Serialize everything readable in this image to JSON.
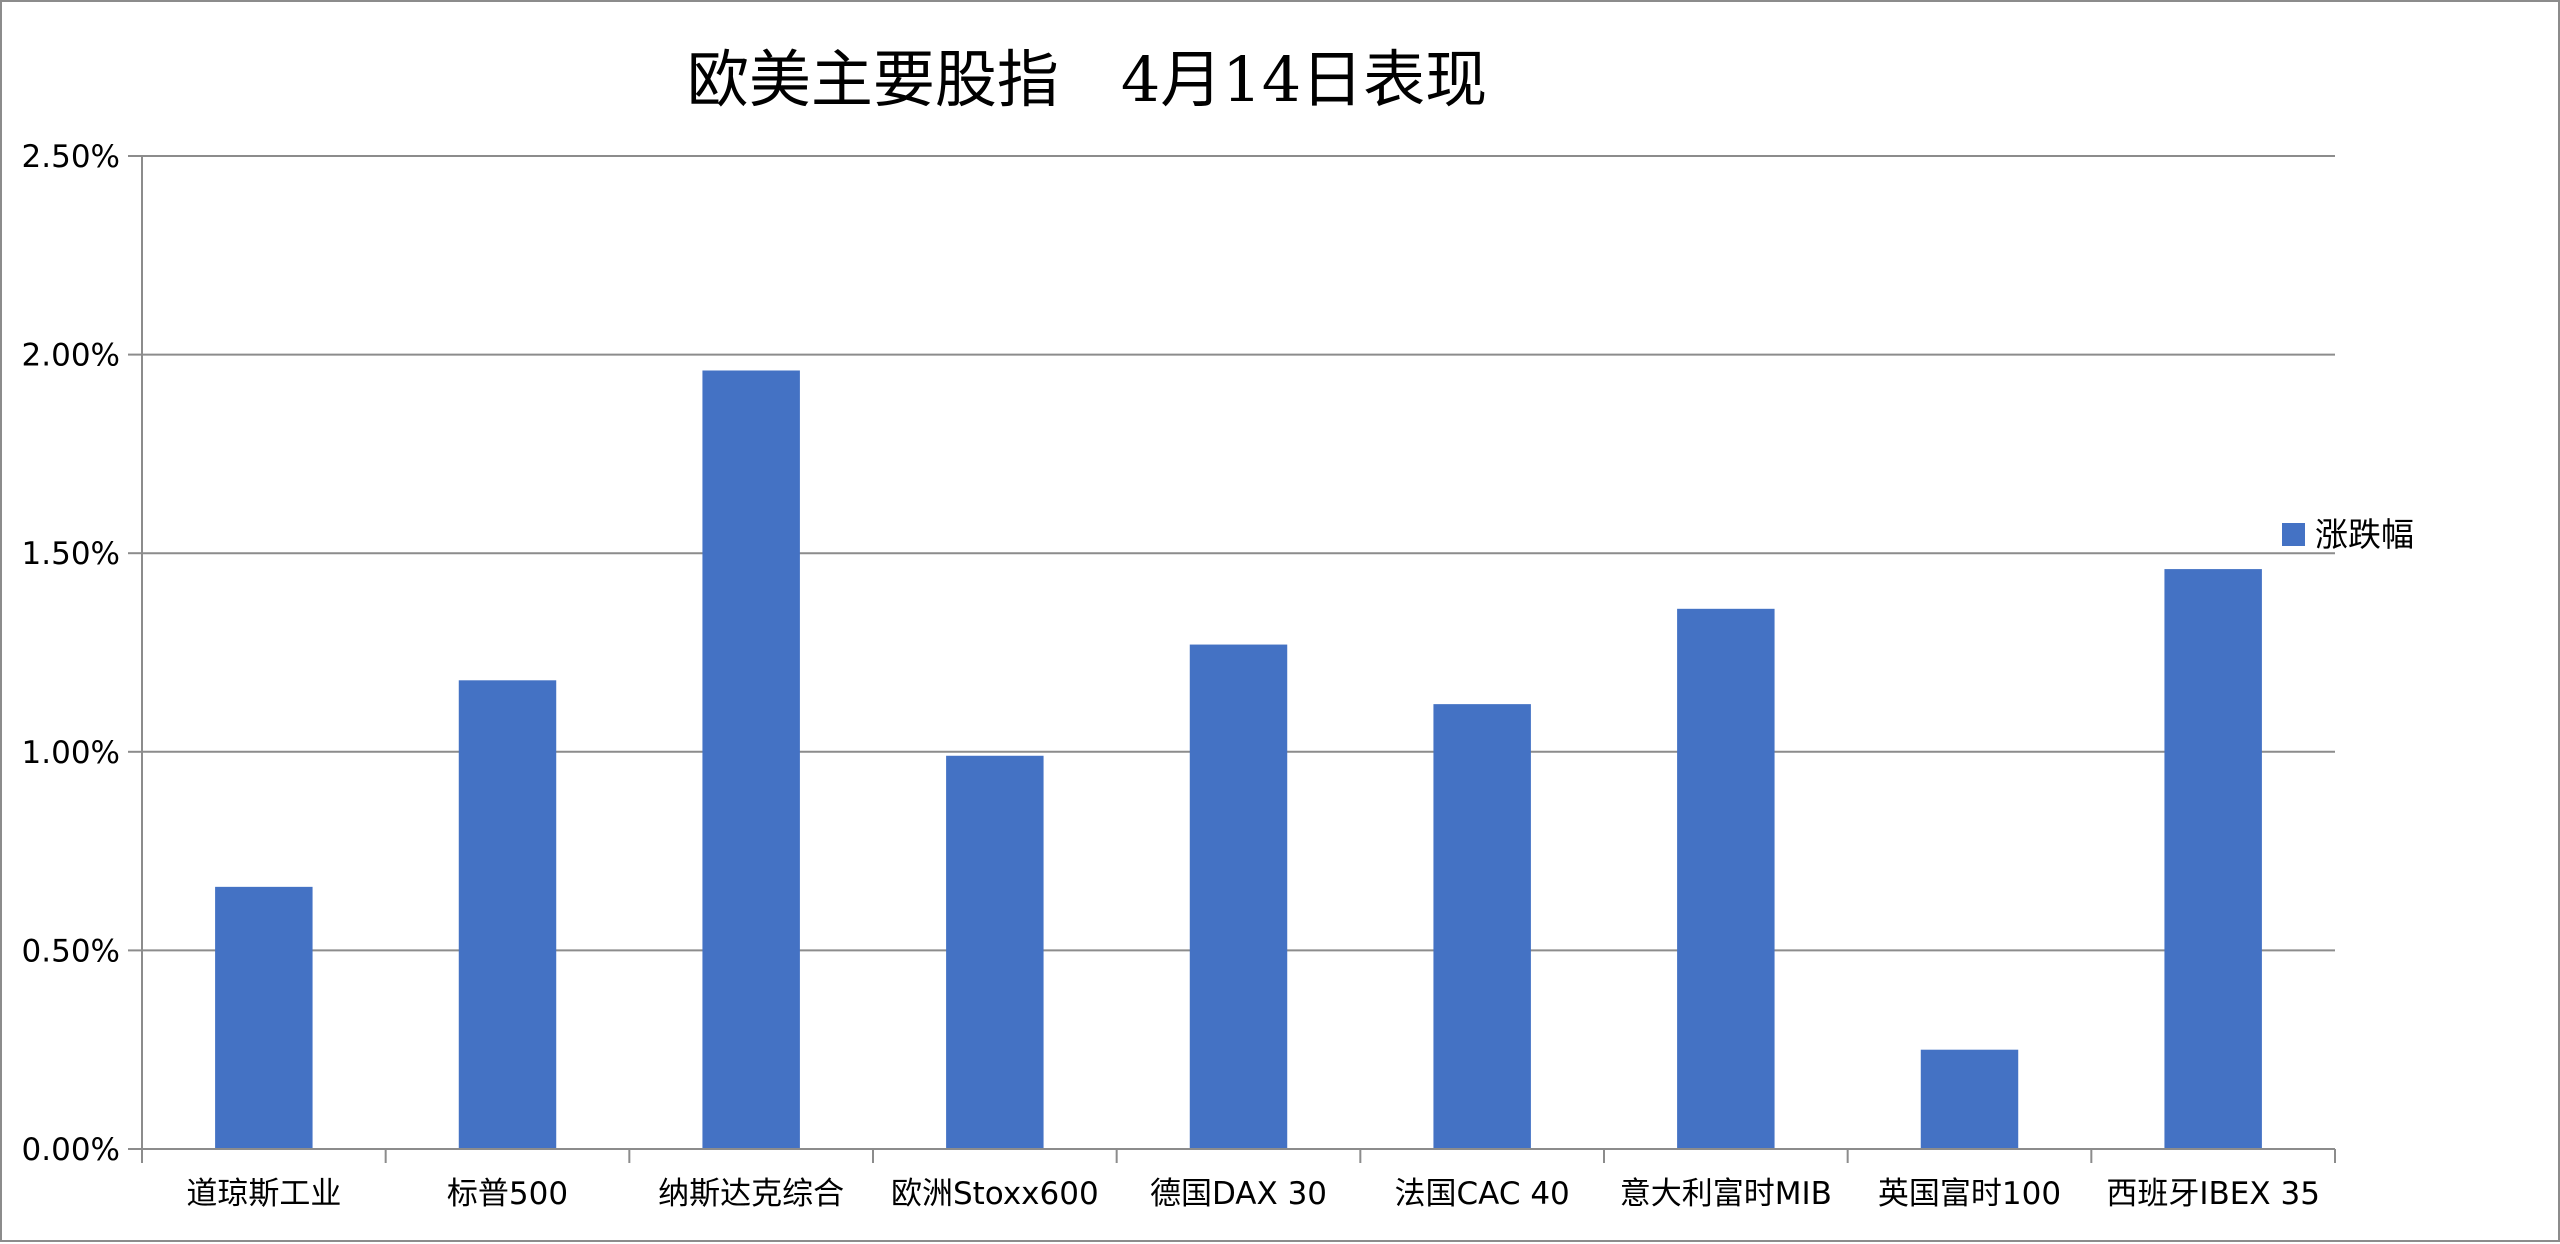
{
  "chart_data": {
    "type": "bar",
    "title": "欧美主要股指　4月14日表现",
    "categories": [
      "道琼斯工业",
      "标普500",
      "纳斯达克综合",
      "欧洲Stoxx600",
      "德国DAX 30",
      "法国CAC 40",
      "意大利富时MIB",
      "英国富时100",
      "西班牙IBEX 35"
    ],
    "series": [
      {
        "name": "涨跌幅",
        "color": "#4472C4",
        "values": [
          0.66,
          1.18,
          1.96,
          0.99,
          1.27,
          1.12,
          1.36,
          0.25,
          1.46
        ]
      }
    ],
    "ylim": [
      0,
      2.5
    ],
    "yticks": [
      0,
      0.5,
      1.0,
      1.5,
      2.0,
      2.5
    ],
    "ytick_labels": [
      "0.00%",
      "0.50%",
      "1.00%",
      "1.50%",
      "2.00%",
      "2.50%"
    ],
    "value_unit": "%",
    "grid": true,
    "legend_position": "right",
    "xlabel": "",
    "ylabel": ""
  }
}
